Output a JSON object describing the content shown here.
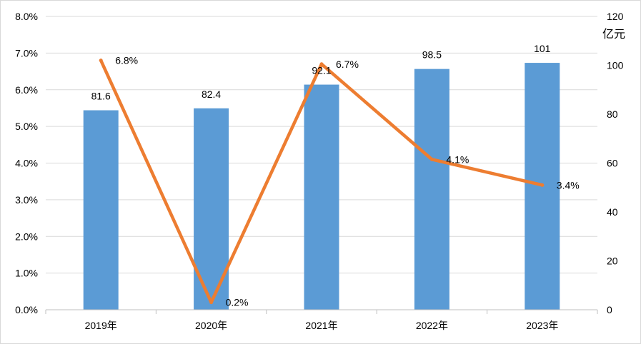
{
  "chart_data": {
    "type": "bar+line",
    "categories": [
      "2019年",
      "2020年",
      "2021年",
      "2022年",
      "2023年"
    ],
    "series": [
      {
        "type": "bar",
        "axis": "right",
        "values": [
          81.6,
          82.4,
          92.1,
          98.5,
          101
        ],
        "labels": [
          "81.6",
          "82.4",
          "92.1",
          "98.5",
          "101"
        ],
        "color": "#5b9bd5"
      },
      {
        "type": "line",
        "axis": "left",
        "values": [
          6.8,
          0.2,
          6.7,
          4.1,
          3.4
        ],
        "labels": [
          "6.8%",
          "0.2%",
          "6.7%",
          "4.1%",
          "3.4%"
        ],
        "color": "#ed7d31"
      }
    ],
    "y_left": {
      "range": [
        0,
        8
      ],
      "ticks": [
        "0.0%",
        "1.0%",
        "2.0%",
        "3.0%",
        "4.0%",
        "5.0%",
        "6.0%",
        "7.0%",
        "8.0%"
      ]
    },
    "y_right": {
      "range": [
        0,
        120
      ],
      "ticks": [
        "0",
        "20",
        "40",
        "60",
        "80",
        "100",
        "120"
      ],
      "unit": "亿元"
    },
    "grid": true,
    "legend": "none"
  }
}
